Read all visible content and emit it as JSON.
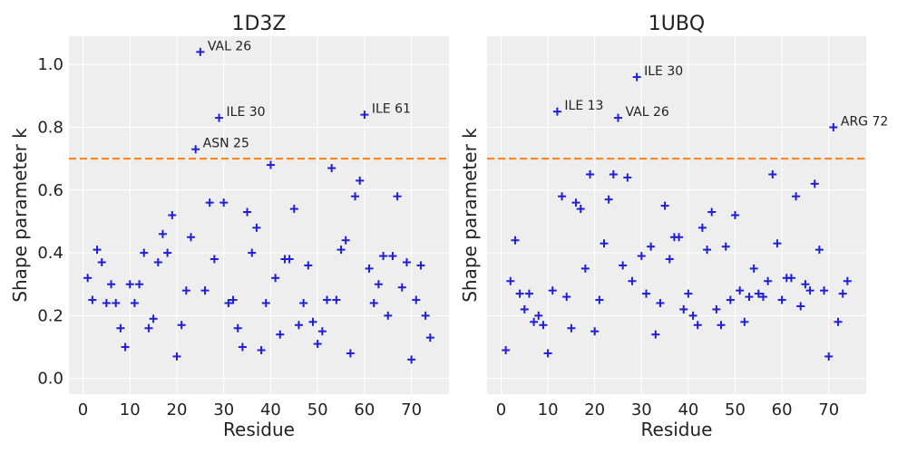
{
  "chart_data": [
    {
      "type": "scatter",
      "title": "1D3Z",
      "xlabel": "Residue",
      "ylabel": "Shape parameter k",
      "xlim": [
        -3,
        78
      ],
      "ylim": [
        -0.05,
        1.09
      ],
      "xticks": [
        0,
        10,
        20,
        30,
        40,
        50,
        60,
        70
      ],
      "yticks": [
        0.0,
        0.2,
        0.4,
        0.6,
        0.8,
        1.0
      ],
      "threshold": 0.7,
      "grid": true,
      "marker_color": "#1f1fd6",
      "threshold_color": "#ff7f0e",
      "points": [
        [
          1,
          0.32
        ],
        [
          2,
          0.25
        ],
        [
          3,
          0.41
        ],
        [
          4,
          0.37
        ],
        [
          5,
          0.24
        ],
        [
          6,
          0.3
        ],
        [
          7,
          0.24
        ],
        [
          8,
          0.16
        ],
        [
          9,
          0.1
        ],
        [
          10,
          0.3
        ],
        [
          11,
          0.24
        ],
        [
          12,
          0.3
        ],
        [
          13,
          0.4
        ],
        [
          14,
          0.16
        ],
        [
          15,
          0.19
        ],
        [
          16,
          0.37
        ],
        [
          17,
          0.46
        ],
        [
          18,
          0.4
        ],
        [
          19,
          0.52
        ],
        [
          20,
          0.07
        ],
        [
          21,
          0.17
        ],
        [
          22,
          0.28
        ],
        [
          23,
          0.45
        ],
        [
          24,
          0.73
        ],
        [
          25,
          1.04
        ],
        [
          26,
          0.28
        ],
        [
          27,
          0.56
        ],
        [
          28,
          0.38
        ],
        [
          29,
          0.83
        ],
        [
          30,
          0.56
        ],
        [
          31,
          0.24
        ],
        [
          32,
          0.25
        ],
        [
          33,
          0.16
        ],
        [
          34,
          0.1
        ],
        [
          35,
          0.53
        ],
        [
          36,
          0.4
        ],
        [
          37,
          0.48
        ],
        [
          38,
          0.09
        ],
        [
          39,
          0.24
        ],
        [
          40,
          0.68
        ],
        [
          41,
          0.32
        ],
        [
          42,
          0.14
        ],
        [
          43,
          0.38
        ],
        [
          44,
          0.38
        ],
        [
          45,
          0.54
        ],
        [
          46,
          0.17
        ],
        [
          47,
          0.24
        ],
        [
          48,
          0.36
        ],
        [
          49,
          0.18
        ],
        [
          50,
          0.11
        ],
        [
          51,
          0.15
        ],
        [
          52,
          0.25
        ],
        [
          53,
          0.67
        ],
        [
          54,
          0.25
        ],
        [
          55,
          0.41
        ],
        [
          56,
          0.44
        ],
        [
          57,
          0.08
        ],
        [
          58,
          0.58
        ],
        [
          59,
          0.63
        ],
        [
          60,
          0.84
        ],
        [
          61,
          0.35
        ],
        [
          62,
          0.24
        ],
        [
          63,
          0.3
        ],
        [
          64,
          0.39
        ],
        [
          65,
          0.2
        ],
        [
          66,
          0.39
        ],
        [
          67,
          0.58
        ],
        [
          68,
          0.29
        ],
        [
          69,
          0.37
        ],
        [
          70,
          0.06
        ],
        [
          71,
          0.25
        ],
        [
          72,
          0.36
        ],
        [
          73,
          0.2
        ],
        [
          74,
          0.13
        ]
      ],
      "annotations": [
        {
          "label": "VAL 26",
          "x": 25,
          "y": 1.04
        },
        {
          "label": "ILE 30",
          "x": 29,
          "y": 0.83
        },
        {
          "label": "ILE 61",
          "x": 60,
          "y": 0.84
        },
        {
          "label": "ASN 25",
          "x": 24,
          "y": 0.73
        }
      ]
    },
    {
      "type": "scatter",
      "title": "1UBQ",
      "xlabel": "Residue",
      "ylabel": "Shape parameter k",
      "xlim": [
        -3,
        78
      ],
      "ylim": [
        -0.05,
        1.09
      ],
      "xticks": [
        0,
        10,
        20,
        30,
        40,
        50,
        60,
        70
      ],
      "yticks": [
        0.0,
        0.2,
        0.4,
        0.6,
        0.8,
        1.0
      ],
      "threshold": 0.7,
      "grid": true,
      "marker_color": "#1f1fd6",
      "threshold_color": "#ff7f0e",
      "points": [
        [
          1,
          0.09
        ],
        [
          2,
          0.31
        ],
        [
          3,
          0.44
        ],
        [
          4,
          0.27
        ],
        [
          5,
          0.22
        ],
        [
          6,
          0.27
        ],
        [
          7,
          0.18
        ],
        [
          8,
          0.2
        ],
        [
          9,
          0.17
        ],
        [
          10,
          0.08
        ],
        [
          11,
          0.28
        ],
        [
          12,
          0.85
        ],
        [
          13,
          0.58
        ],
        [
          14,
          0.26
        ],
        [
          15,
          0.16
        ],
        [
          16,
          0.56
        ],
        [
          17,
          0.54
        ],
        [
          18,
          0.35
        ],
        [
          19,
          0.65
        ],
        [
          20,
          0.15
        ],
        [
          21,
          0.25
        ],
        [
          22,
          0.43
        ],
        [
          23,
          0.57
        ],
        [
          24,
          0.65
        ],
        [
          25,
          0.83
        ],
        [
          26,
          0.36
        ],
        [
          27,
          0.64
        ],
        [
          28,
          0.31
        ],
        [
          29,
          0.96
        ],
        [
          30,
          0.39
        ],
        [
          31,
          0.27
        ],
        [
          32,
          0.42
        ],
        [
          33,
          0.14
        ],
        [
          34,
          0.24
        ],
        [
          35,
          0.55
        ],
        [
          36,
          0.38
        ],
        [
          37,
          0.45
        ],
        [
          38,
          0.45
        ],
        [
          39,
          0.22
        ],
        [
          40,
          0.27
        ],
        [
          41,
          0.2
        ],
        [
          42,
          0.17
        ],
        [
          43,
          0.48
        ],
        [
          44,
          0.41
        ],
        [
          45,
          0.53
        ],
        [
          46,
          0.22
        ],
        [
          47,
          0.17
        ],
        [
          48,
          0.42
        ],
        [
          49,
          0.25
        ],
        [
          50,
          0.52
        ],
        [
          51,
          0.28
        ],
        [
          52,
          0.18
        ],
        [
          53,
          0.26
        ],
        [
          54,
          0.35
        ],
        [
          55,
          0.27
        ],
        [
          56,
          0.26
        ],
        [
          57,
          0.31
        ],
        [
          58,
          0.65
        ],
        [
          59,
          0.43
        ],
        [
          60,
          0.25
        ],
        [
          61,
          0.32
        ],
        [
          62,
          0.32
        ],
        [
          63,
          0.58
        ],
        [
          64,
          0.23
        ],
        [
          65,
          0.3
        ],
        [
          66,
          0.28
        ],
        [
          67,
          0.62
        ],
        [
          68,
          0.41
        ],
        [
          69,
          0.28
        ],
        [
          70,
          0.07
        ],
        [
          71,
          0.8
        ],
        [
          72,
          0.18
        ],
        [
          73,
          0.27
        ],
        [
          74,
          0.31
        ]
      ],
      "annotations": [
        {
          "label": "ILE 30",
          "x": 29,
          "y": 0.96
        },
        {
          "label": "ILE 13",
          "x": 12,
          "y": 0.85
        },
        {
          "label": "VAL 26",
          "x": 25,
          "y": 0.83
        },
        {
          "label": "ARG 72",
          "x": 71,
          "y": 0.8
        }
      ]
    }
  ]
}
